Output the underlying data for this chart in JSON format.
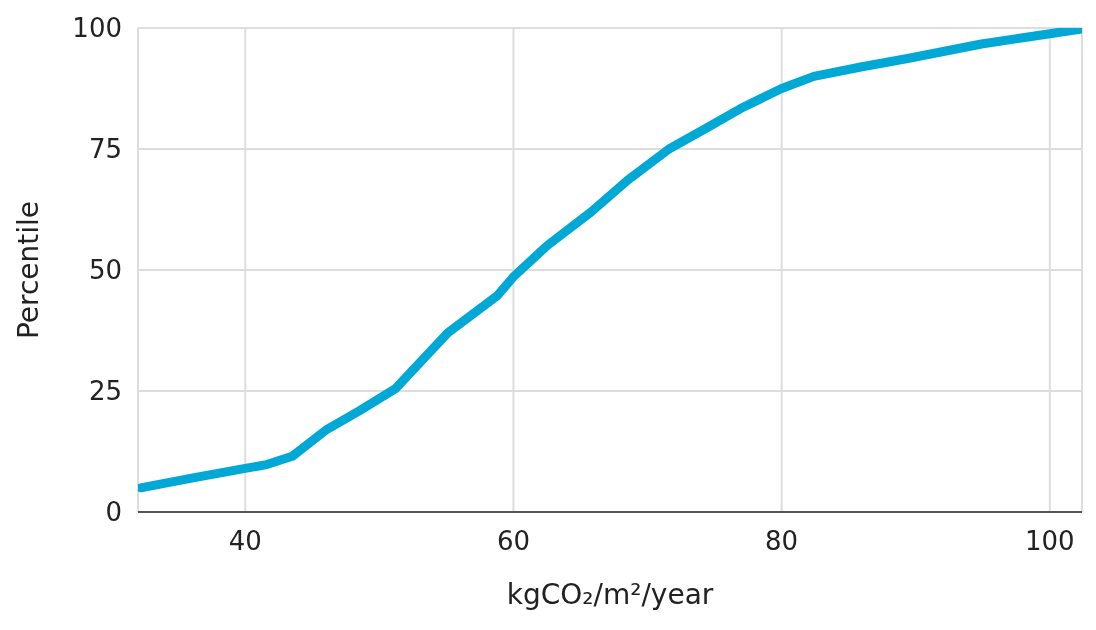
{
  "chart_data": {
    "type": "line",
    "xlabel": "kgCO₂/m²/year",
    "ylabel": "Percentile",
    "xlim": [
      32,
      102.4
    ],
    "ylim": [
      0,
      100
    ],
    "xticks": [
      40,
      60,
      80,
      100
    ],
    "yticks": [
      0,
      25,
      50,
      75,
      100
    ],
    "grid": true,
    "marker": "none",
    "line_style": "solid",
    "series": [
      {
        "color": "#00a8d6",
        "x": [
          32.2,
          36,
          40,
          41.6,
          43.5,
          46,
          48.5,
          51.2,
          55.1,
          58.8,
          60,
          62.5,
          65.8,
          68.5,
          71.6,
          74.5,
          76.9,
          80,
          82.4,
          86,
          89.4,
          94.9,
          98,
          102.4
        ],
        "values": [
          5,
          7,
          9,
          9.8,
          11.5,
          16.9,
          20.9,
          25.5,
          37,
          44.7,
          48.6,
          55,
          62,
          68.5,
          75,
          79.5,
          83.3,
          87.5,
          90,
          92,
          93.7,
          96.7,
          98,
          99.8
        ]
      }
    ]
  }
}
